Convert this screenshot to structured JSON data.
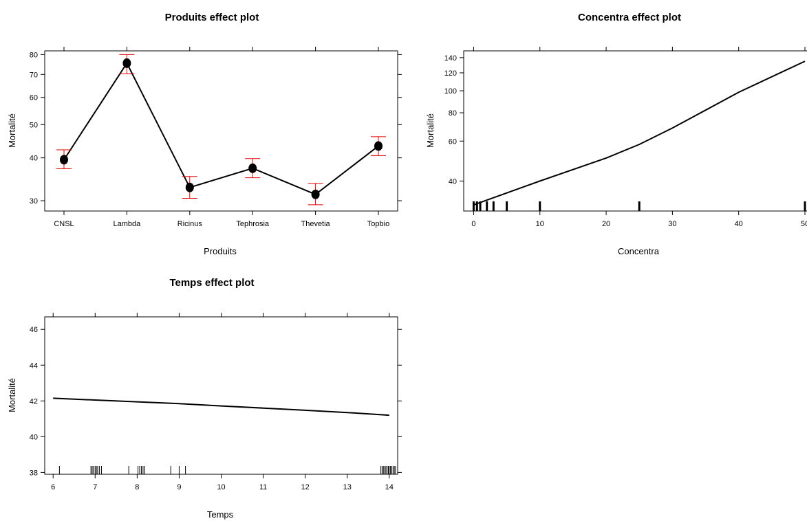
{
  "header_fragment": "",
  "chart_data": [
    {
      "id": "produits",
      "type": "line",
      "title": "Produits effect plot",
      "xlabel": "Produits",
      "ylabel": "Mortalité",
      "y_scale": "log",
      "ylim": [
        28,
        82
      ],
      "yticks": [
        30,
        40,
        50,
        60,
        70,
        80
      ],
      "categories": [
        "CNSL",
        "Lambda",
        "Ricinus",
        "Tephrosia",
        "Thevetia",
        "Topbio"
      ],
      "values": [
        39.5,
        75.5,
        32.8,
        37.3,
        31.3,
        43.3
      ],
      "lower": [
        37.2,
        70.3,
        30.5,
        35.0,
        29.2,
        40.6
      ],
      "upper": [
        42.2,
        80.0,
        35.3,
        39.8,
        33.7,
        46.1
      ],
      "grid": false
    },
    {
      "id": "concentra",
      "type": "line",
      "title": "Concentra effect plot",
      "xlabel": "Concentra",
      "ylabel": "Mortalité",
      "y_scale": "log",
      "xlim": [
        -1.5,
        50
      ],
      "ylim": [
        29.5,
        150
      ],
      "xticks": [
        0,
        10,
        20,
        30,
        40,
        50
      ],
      "yticks": [
        40,
        60,
        80,
        100,
        120,
        140
      ],
      "x": [
        0,
        10,
        20,
        25,
        30,
        40,
        50
      ],
      "y": [
        31.4,
        40.0,
        50.5,
        58.0,
        68.5,
        98.5,
        135.0
      ],
      "rug": [
        0,
        0.5,
        1,
        2,
        3,
        5,
        10,
        25,
        50
      ],
      "grid": false
    },
    {
      "id": "temps",
      "type": "line",
      "title": "Temps effect plot",
      "xlabel": "Temps",
      "ylabel": "Mortalité",
      "xlim": [
        5.8,
        14.2
      ],
      "ylim": [
        37.9,
        46.7
      ],
      "xticks": [
        6,
        7,
        8,
        9,
        10,
        11,
        12,
        13,
        14
      ],
      "yticks": [
        38,
        40,
        42,
        44,
        46
      ],
      "x": [
        6,
        7,
        8,
        9,
        10,
        11,
        12,
        13,
        14
      ],
      "y": [
        42.15,
        42.05,
        41.95,
        41.85,
        41.72,
        41.6,
        41.48,
        41.35,
        41.2
      ],
      "rug": [
        6.15,
        6.9,
        6.93,
        6.96,
        7.0,
        7.03,
        7.06,
        7.1,
        7.15,
        7.8,
        8.02,
        8.06,
        8.1,
        8.14,
        8.18,
        8.8,
        9.0,
        9.15,
        13.8,
        13.83,
        13.86,
        13.89,
        13.92,
        13.95,
        13.98,
        14.0,
        14.03,
        14.06,
        14.09,
        14.12,
        14.15
      ],
      "grid": false
    }
  ]
}
